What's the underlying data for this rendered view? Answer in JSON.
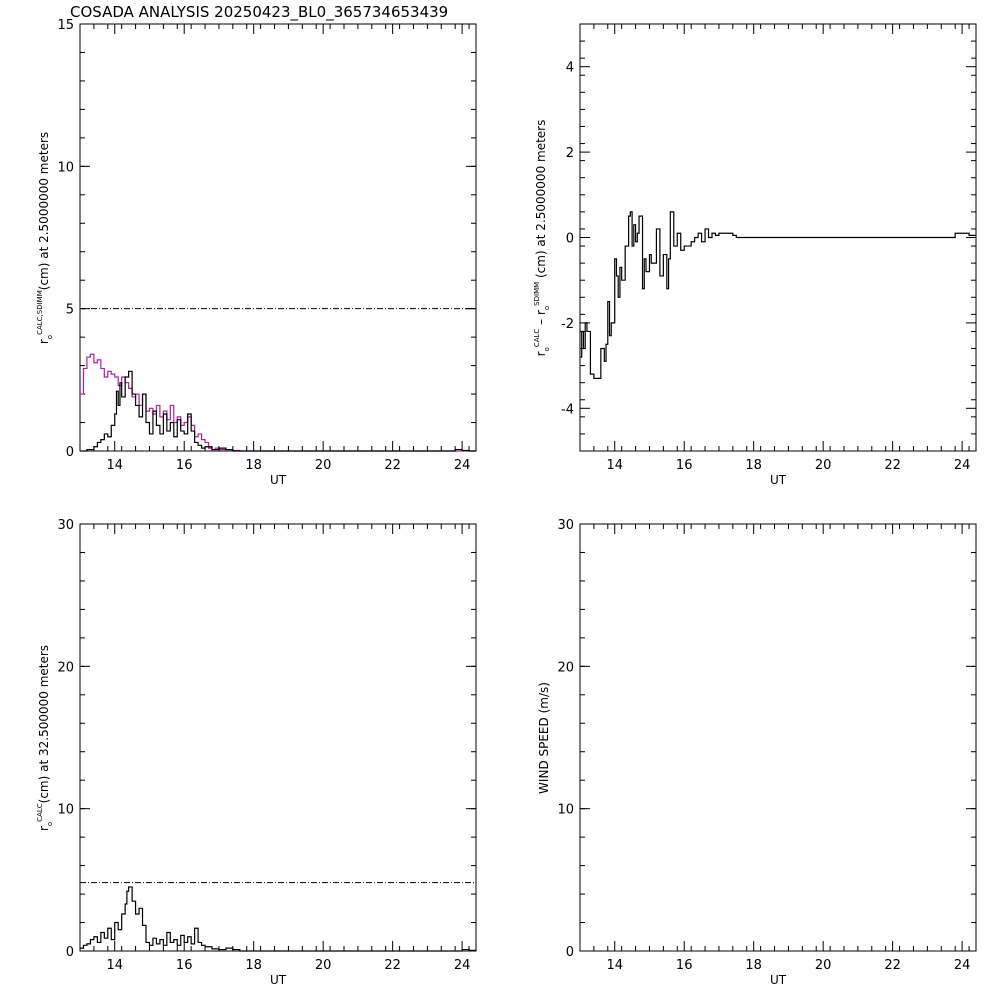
{
  "title": "COSADA ANALYSIS 20250423_BL0_365734653439",
  "colors": {
    "axis": "#000000",
    "series_black": "#000000",
    "series_magenta": "#b0209a"
  },
  "chart_data": [
    {
      "id": "top-left",
      "type": "line",
      "xlabel": "UT",
      "ylabel": {
        "base": "r",
        "sub": "o",
        "sup": "CALC,SDIMM",
        "rest": "(cm)  at  2.5000000 meters"
      },
      "xlim": [
        13.0,
        24.4
      ],
      "ylim": [
        0,
        15
      ],
      "xticks": [
        14,
        16,
        18,
        20,
        22,
        24
      ],
      "xtick_labels": [
        "14",
        "16",
        "18",
        "20",
        "22",
        "24"
      ],
      "yticks": [
        0,
        5,
        10,
        15
      ],
      "ytick_labels": [
        "0",
        "5",
        "10",
        "15"
      ],
      "reference_line": {
        "y": 5,
        "style": "dash-dot"
      },
      "series": [
        {
          "color": "#b0209a",
          "step": true,
          "x": [
            13.0,
            13.1,
            13.2,
            13.3,
            13.4,
            13.5,
            13.6,
            13.7,
            13.8,
            13.9,
            14.0,
            14.1,
            14.2,
            14.3,
            14.4,
            14.5,
            14.6,
            14.7,
            14.8,
            14.9,
            15.0,
            15.1,
            15.2,
            15.3,
            15.4,
            15.5,
            15.6,
            15.7,
            15.8,
            15.9,
            16.0,
            16.1,
            16.2,
            16.3,
            16.4,
            16.5,
            16.6,
            16.7,
            16.8,
            16.9,
            17.0,
            17.2,
            17.4,
            17.6,
            17.8,
            18.0,
            19.0,
            20.0,
            21.0,
            22.0,
            23.0,
            24.0,
            24.4
          ],
          "y": [
            2.0,
            2.9,
            3.3,
            3.4,
            3.1,
            3.2,
            2.9,
            2.6,
            2.8,
            2.7,
            2.6,
            2.3,
            2.6,
            2.4,
            2.2,
            1.9,
            2.0,
            1.6,
            2.0,
            1.4,
            1.5,
            1.3,
            1.6,
            1.2,
            1.4,
            1.1,
            1.6,
            1.0,
            1.2,
            0.9,
            1.0,
            1.2,
            0.9,
            0.5,
            0.6,
            0.4,
            0.3,
            0.1,
            0.05,
            0.1,
            0.05,
            0.05,
            0.02,
            0.0,
            0.0,
            0.0,
            0.0,
            0.0,
            0.0,
            0.0,
            0.0,
            0.0,
            0.0
          ]
        },
        {
          "color": "#000000",
          "step": true,
          "x": [
            13.0,
            13.2,
            13.4,
            13.5,
            13.6,
            13.7,
            13.8,
            13.9,
            14.0,
            14.05,
            14.1,
            14.15,
            14.2,
            14.3,
            14.4,
            14.5,
            14.6,
            14.7,
            14.8,
            14.9,
            15.0,
            15.1,
            15.2,
            15.3,
            15.4,
            15.5,
            15.6,
            15.7,
            15.8,
            15.9,
            16.0,
            16.1,
            16.2,
            16.3,
            16.4,
            16.5,
            16.6,
            16.8,
            17.0,
            17.2,
            17.4,
            17.6,
            18.0,
            20.0,
            22.0,
            23.8,
            24.0,
            24.2,
            24.4
          ],
          "y": [
            0.0,
            0.05,
            0.15,
            0.3,
            0.4,
            0.6,
            0.5,
            0.9,
            1.3,
            2.1,
            1.6,
            2.4,
            1.9,
            2.6,
            2.8,
            2.0,
            1.6,
            1.2,
            2.0,
            1.0,
            0.6,
            1.4,
            0.9,
            0.6,
            1.3,
            0.7,
            1.0,
            0.5,
            1.1,
            0.7,
            0.6,
            1.3,
            0.7,
            0.3,
            0.2,
            0.1,
            0.15,
            0.05,
            0.1,
            0.05,
            0.0,
            0.0,
            0.0,
            0.0,
            0.0,
            0.05,
            0.02,
            0.0,
            0.0
          ]
        }
      ]
    },
    {
      "id": "top-right",
      "type": "line",
      "xlabel": "UT",
      "ylabel": {
        "base": "r",
        "sub": "o",
        "sup": "CALC",
        "mid": " – r",
        "sub2": "o",
        "sup2": "SDIMM",
        "rest": " (cm)  at  2.5000000 meters"
      },
      "xlim": [
        13.0,
        24.4
      ],
      "ylim": [
        -5,
        5
      ],
      "xticks": [
        14,
        16,
        18,
        20,
        22,
        24
      ],
      "xtick_labels": [
        "14",
        "16",
        "18",
        "20",
        "22",
        "24"
      ],
      "yticks": [
        -4,
        -2,
        0,
        2,
        4
      ],
      "ytick_labels": [
        "-4",
        "-2",
        "0",
        "2",
        "4"
      ],
      "series": [
        {
          "color": "#000000",
          "step": true,
          "x": [
            13.0,
            13.05,
            13.1,
            13.15,
            13.2,
            13.3,
            13.4,
            13.5,
            13.6,
            13.7,
            13.75,
            13.8,
            13.85,
            13.9,
            14.0,
            14.05,
            14.1,
            14.15,
            14.2,
            14.3,
            14.4,
            14.45,
            14.5,
            14.55,
            14.6,
            14.65,
            14.7,
            14.8,
            14.85,
            14.9,
            15.0,
            15.05,
            15.1,
            15.2,
            15.3,
            15.4,
            15.5,
            15.55,
            15.6,
            15.7,
            15.8,
            15.9,
            16.0,
            16.1,
            16.2,
            16.3,
            16.4,
            16.5,
            16.6,
            16.7,
            16.8,
            16.9,
            17.0,
            17.2,
            17.4,
            17.5,
            18.0,
            19.0,
            20.0,
            21.0,
            22.0,
            23.0,
            23.8,
            24.2,
            24.4
          ],
          "y": [
            -2.8,
            -2.2,
            -2.6,
            -2.0,
            -2.2,
            -3.2,
            -3.3,
            -3.3,
            -2.6,
            -2.9,
            -2.5,
            -1.5,
            -2.3,
            -2.0,
            -0.5,
            -0.9,
            -1.4,
            -0.7,
            -1.0,
            -0.2,
            0.5,
            0.6,
            -0.2,
            0.3,
            -0.1,
            0.1,
            0.5,
            -1.2,
            -0.5,
            -0.8,
            -0.4,
            -0.6,
            -0.6,
            0.2,
            -0.9,
            -0.4,
            -1.2,
            -0.5,
            0.6,
            -0.2,
            0.1,
            -0.3,
            -0.2,
            -0.2,
            -0.1,
            0.0,
            0.1,
            -0.1,
            0.2,
            0.0,
            0.1,
            0.05,
            0.1,
            0.1,
            0.05,
            0.0,
            0.0,
            0.0,
            0.0,
            0.0,
            0.0,
            0.0,
            0.1,
            0.05,
            0.05
          ]
        }
      ]
    },
    {
      "id": "bottom-left",
      "type": "line",
      "xlabel": "UT",
      "ylabel": {
        "base": "r",
        "sub": "o",
        "sup": "CALC",
        "rest": "(cm)  at  32.500000 meters"
      },
      "xlim": [
        13.0,
        24.4
      ],
      "ylim": [
        0,
        30
      ],
      "xticks": [
        14,
        16,
        18,
        20,
        22,
        24
      ],
      "xtick_labels": [
        "14",
        "16",
        "18",
        "20",
        "22",
        "24"
      ],
      "yticks": [
        0,
        10,
        20,
        30
      ],
      "ytick_labels": [
        "0",
        "10",
        "20",
        "30"
      ],
      "reference_line": {
        "y": 4.8,
        "style": "dash-dot"
      },
      "series": [
        {
          "color": "#000000",
          "step": true,
          "x": [
            13.0,
            13.1,
            13.2,
            13.3,
            13.4,
            13.5,
            13.6,
            13.7,
            13.8,
            13.9,
            14.0,
            14.1,
            14.2,
            14.3,
            14.35,
            14.4,
            14.5,
            14.6,
            14.7,
            14.8,
            14.9,
            15.0,
            15.1,
            15.2,
            15.3,
            15.4,
            15.5,
            15.6,
            15.7,
            15.8,
            15.9,
            16.0,
            16.1,
            16.2,
            16.3,
            16.4,
            16.5,
            16.6,
            16.8,
            17.0,
            17.2,
            17.4,
            17.6,
            18.0,
            20.0,
            22.0,
            23.8,
            24.0,
            24.2,
            24.4
          ],
          "y": [
            0.2,
            0.4,
            0.5,
            0.8,
            1.0,
            0.6,
            1.3,
            0.9,
            1.6,
            0.8,
            2.0,
            1.5,
            2.6,
            3.3,
            4.2,
            4.5,
            3.5,
            2.6,
            3.0,
            1.8,
            0.6,
            0.4,
            0.9,
            0.5,
            0.8,
            0.4,
            1.3,
            0.6,
            0.8,
            0.4,
            1.1,
            0.6,
            1.0,
            0.5,
            1.6,
            0.6,
            0.4,
            0.3,
            0.15,
            0.1,
            0.2,
            0.1,
            0.0,
            0.0,
            0.0,
            0.0,
            0.0,
            0.1,
            0.05,
            0.0
          ]
        }
      ]
    },
    {
      "id": "bottom-right",
      "type": "line",
      "xlabel": "UT",
      "ylabel": {
        "base": "WIND SPEED (m/s)"
      },
      "xlim": [
        13.0,
        24.4
      ],
      "ylim": [
        0,
        30
      ],
      "xticks": [
        14,
        16,
        18,
        20,
        22,
        24
      ],
      "xtick_labels": [
        "14",
        "16",
        "18",
        "20",
        "22",
        "24"
      ],
      "yticks": [
        0,
        10,
        20,
        30
      ],
      "ytick_labels": [
        "0",
        "10",
        "20",
        "30"
      ],
      "series": []
    }
  ]
}
